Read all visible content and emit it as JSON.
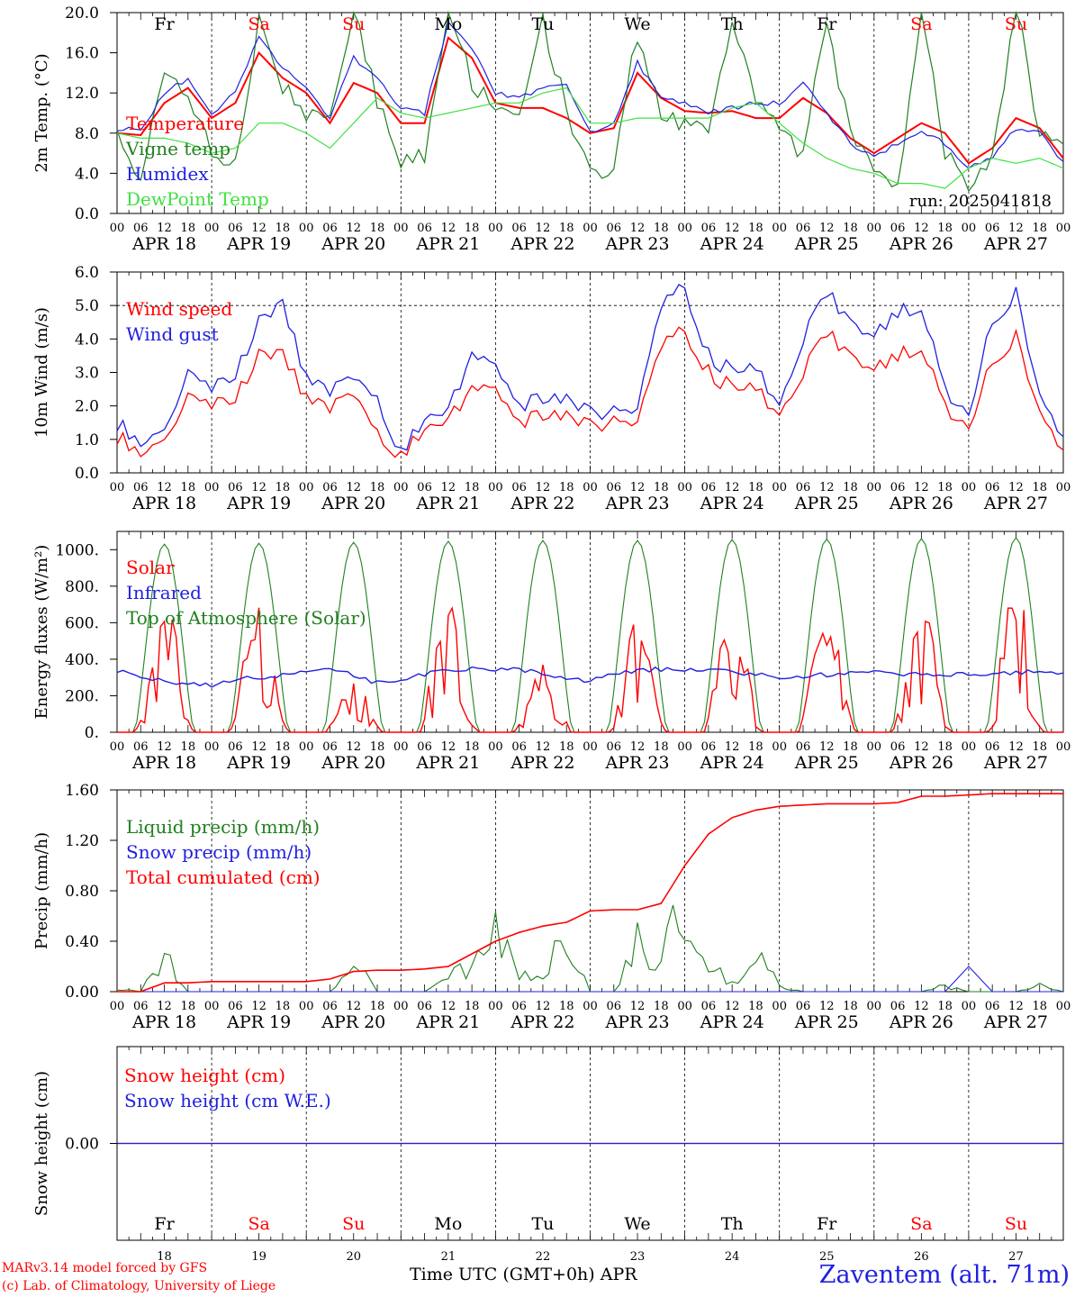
{
  "chart_data": [
    {
      "type": "line",
      "ylabel": "2m Temp. (°C)",
      "ylim": [
        0,
        20
      ],
      "yticks": [
        "0.0",
        "4.0",
        "8.0",
        "12.0",
        "16.0",
        "20.0"
      ],
      "annotation": "run: 2025041818",
      "day_labels": [
        "Fr",
        "Sa",
        "Su",
        "Mo",
        "Tu",
        "We",
        "Th",
        "Fr",
        "Sa",
        "Su"
      ],
      "x_hours": [
        0,
        6,
        12,
        18,
        24,
        30,
        36,
        42,
        48,
        54,
        60,
        66,
        72,
        78,
        84,
        90,
        96,
        102,
        108,
        114,
        120,
        126,
        132,
        138,
        144,
        150,
        156,
        162,
        168,
        174,
        180,
        186,
        192,
        198,
        204,
        210,
        216,
        222,
        228,
        234,
        240
      ],
      "series": [
        {
          "name": "Temperature",
          "color": "#ff0000",
          "values": [
            8.0,
            7.8,
            11.0,
            12.5,
            9.5,
            11.0,
            16.0,
            13.5,
            12.0,
            9.0,
            13.0,
            12.0,
            9.0,
            9.0,
            17.5,
            15.5,
            11.0,
            10.5,
            10.5,
            9.5,
            8.0,
            8.5,
            14.0,
            11.5,
            10.2,
            10.0,
            10.2,
            9.5,
            9.5,
            11.5,
            10.0,
            7.5,
            6.0,
            7.5,
            9.0,
            8.0,
            5.0,
            6.5,
            9.5,
            8.5,
            5.5
          ]
        },
        {
          "name": "Vigne temp",
          "color": "#208020",
          "values": [
            7.5,
            4.0,
            13.0,
            12.0,
            6.0,
            5.0,
            19.0,
            12.5,
            10.0,
            9.0,
            21.0,
            11.0,
            5.5,
            6.0,
            21.0,
            13.0,
            11.0,
            10.5,
            19.0,
            10.5,
            4.0,
            5.0,
            18.0,
            10.0,
            9.0,
            9.0,
            19.0,
            11.0,
            8.0,
            6.0,
            19.0,
            8.0,
            5.0,
            3.0,
            20.0,
            6.0,
            3.0,
            5.5,
            21.0,
            7.5,
            6.5
          ]
        },
        {
          "name": "Humidex",
          "color": "#2020e0",
          "values": [
            8.5,
            8.3,
            12.0,
            13.5,
            10.0,
            12.0,
            17.5,
            14.5,
            12.5,
            9.5,
            15.5,
            13.5,
            10.5,
            10.0,
            19.0,
            16.5,
            12.0,
            11.5,
            12.5,
            13.0,
            8.0,
            9.0,
            15.0,
            11.5,
            11.0,
            10.0,
            10.5,
            11.0,
            11.0,
            13.0,
            10.0,
            7.0,
            5.5,
            7.0,
            8.0,
            7.0,
            4.5,
            5.5,
            8.5,
            8.0,
            5.0
          ]
        },
        {
          "name": "DewPoint Temp",
          "color": "#40e040",
          "values": [
            8.0,
            7.5,
            7.5,
            7.0,
            6.0,
            6.5,
            9.0,
            9.0,
            8.0,
            6.5,
            9.0,
            11.5,
            10.0,
            9.5,
            10.0,
            10.5,
            11.0,
            11.0,
            12.0,
            12.5,
            9.0,
            9.0,
            9.5,
            9.5,
            9.5,
            9.5,
            10.5,
            11.0,
            9.0,
            7.0,
            5.5,
            4.5,
            4.0,
            3.0,
            3.0,
            2.5,
            4.5,
            5.5,
            5.0,
            5.5,
            4.5
          ]
        }
      ]
    },
    {
      "type": "line",
      "ylabel": "10m Wind (m/s)",
      "ylim": [
        0,
        6
      ],
      "yticks": [
        "0.0",
        "1.0",
        "2.0",
        "3.0",
        "4.0",
        "5.0",
        "6.0"
      ],
      "reference_line": 5.0,
      "x_hours": [
        0,
        6,
        12,
        18,
        24,
        30,
        36,
        42,
        48,
        54,
        60,
        66,
        72,
        78,
        84,
        90,
        96,
        102,
        108,
        114,
        120,
        126,
        132,
        138,
        144,
        150,
        156,
        162,
        168,
        174,
        180,
        186,
        192,
        198,
        204,
        210,
        216,
        222,
        228,
        234,
        240
      ],
      "series": [
        {
          "name": "Wind speed",
          "color": "#ff0000",
          "values": [
            1.1,
            0.6,
            0.8,
            2.2,
            2.0,
            2.3,
            3.5,
            3.5,
            2.3,
            2.0,
            2.5,
            1.2,
            0.4,
            1.3,
            1.6,
            2.5,
            2.7,
            1.5,
            1.8,
            1.8,
            1.4,
            1.5,
            1.6,
            3.8,
            4.2,
            3.0,
            2.5,
            2.7,
            1.5,
            3.0,
            4.2,
            3.5,
            3.0,
            3.5,
            3.8,
            2.0,
            1.4,
            3.3,
            4.0,
            2.0,
            0.5
          ]
        },
        {
          "name": "Wind gust",
          "color": "#2020e0",
          "values": [
            1.5,
            0.9,
            1.1,
            2.9,
            2.5,
            3.0,
            4.5,
            5.0,
            2.9,
            2.5,
            3.0,
            2.2,
            0.5,
            1.6,
            1.9,
            3.5,
            3.4,
            2.0,
            2.3,
            2.3,
            1.8,
            1.8,
            2.0,
            5.0,
            5.5,
            3.5,
            3.0,
            3.3,
            1.8,
            4.0,
            5.4,
            4.5,
            4.0,
            4.8,
            5.0,
            2.5,
            1.8,
            4.5,
            5.3,
            2.5,
            0.9
          ]
        }
      ]
    },
    {
      "type": "line",
      "ylabel": "Energy fluxes (W/m²)",
      "ylim": [
        0,
        1100
      ],
      "yticks": [
        "0.",
        "200.",
        "400.",
        "600.",
        "800.",
        "1000."
      ],
      "series": [
        {
          "name": "Solar",
          "color": "#ff0000",
          "peaks": [
            740,
            750,
            290,
            780,
            410,
            620,
            690,
            700,
            760,
            800
          ]
        },
        {
          "name": "Infrared",
          "color": "#2020e0",
          "values": [
            340,
            300,
            265,
            260,
            300,
            300,
            340,
            345,
            280,
            280,
            330,
            345,
            345,
            340,
            300,
            280,
            330,
            345,
            345,
            340,
            320,
            300,
            310,
            320,
            330,
            320,
            315,
            320,
            320,
            330,
            320
          ]
        },
        {
          "name": "Top of Atmosphere (Solar)",
          "color": "#208020",
          "peaks": [
            1030,
            1035,
            1040,
            1045,
            1050,
            1050,
            1055,
            1058,
            1060,
            1065
          ]
        }
      ]
    },
    {
      "type": "line",
      "ylabel": "Precip (mm/h)",
      "ylim": [
        0,
        1.6
      ],
      "yticks": [
        "0.00",
        "0.40",
        "0.80",
        "1.20",
        "1.60"
      ],
      "series": [
        {
          "name": "Liquid precip (mm/h)",
          "color": "#208020",
          "values": [
            0.03,
            0.0,
            0.32,
            0.0,
            0.0,
            0.0,
            0.0,
            0.0,
            0.0,
            0.0,
            0.27,
            0.0,
            0.0,
            0.0,
            0.1,
            0.25,
            0.6,
            0.15,
            0.1,
            0.55,
            0.0,
            0.0,
            0.4,
            0.3,
            0.75,
            0.2,
            0.1,
            0.3,
            0.05,
            0.0,
            0.0,
            0.0,
            0.0,
            0.0,
            0.0,
            0.05,
            0.0,
            0.0,
            0.0,
            0.05,
            0.0
          ]
        },
        {
          "name": "Snow precip (mm/h)",
          "color": "#2020e0",
          "values": [
            0.0,
            0.0,
            0.0,
            0.0,
            0.0,
            0.0,
            0.0,
            0.0,
            0.0,
            0.0,
            0.0,
            0.0,
            0.0,
            0.0,
            0.0,
            0.0,
            0.0,
            0.0,
            0.0,
            0.0,
            0.0,
            0.0,
            0.0,
            0.0,
            0.0,
            0.0,
            0.0,
            0.0,
            0.0,
            0.0,
            0.0,
            0.0,
            0.0,
            0.0,
            0.0,
            0.0,
            0.2,
            0.0,
            0.0,
            0.0,
            0.0
          ]
        },
        {
          "name": "Total cumulated (cm)",
          "color": "#ff0000",
          "values": [
            0.0,
            0.0,
            0.07,
            0.07,
            0.08,
            0.08,
            0.08,
            0.08,
            0.08,
            0.1,
            0.16,
            0.17,
            0.17,
            0.18,
            0.2,
            0.3,
            0.4,
            0.47,
            0.52,
            0.55,
            0.64,
            0.65,
            0.65,
            0.7,
            1.0,
            1.25,
            1.38,
            1.44,
            1.47,
            1.48,
            1.49,
            1.49,
            1.49,
            1.5,
            1.55,
            1.55,
            1.56,
            1.57,
            1.57,
            1.57,
            1.57
          ]
        }
      ]
    },
    {
      "type": "line",
      "ylabel": "Snow height (cm)",
      "yticks": [
        "0.00"
      ],
      "series": [
        {
          "name": "Snow height (cm)",
          "color": "#ff0000",
          "values": [
            0,
            0,
            0,
            0,
            0,
            0,
            0,
            0,
            0,
            0,
            0
          ]
        },
        {
          "name": "Snow height (cm W.E.)",
          "color": "#2020e0",
          "values": [
            0,
            0,
            0,
            0,
            0,
            0,
            0,
            0,
            0,
            0,
            0
          ]
        }
      ]
    }
  ],
  "x_axis": {
    "hour_ticks": [
      "00",
      "06",
      "12",
      "18"
    ],
    "last_tick": "00",
    "dates": [
      "APR 18",
      "APR 19",
      "APR 20",
      "APR 21",
      "APR 22",
      "APR 23",
      "APR 24",
      "APR 25",
      "APR 26",
      "APR 27"
    ],
    "day_numbers": [
      "18",
      "19",
      "20",
      "21",
      "22",
      "23",
      "24",
      "25",
      "26",
      "27"
    ],
    "weekdays": [
      "Fr",
      "Sa",
      "Su",
      "Mo",
      "Tu",
      "We",
      "Th",
      "Fr",
      "Sa",
      "Su"
    ],
    "weekday_colors": [
      "#000000",
      "#ff0000",
      "#ff0000",
      "#000000",
      "#000000",
      "#000000",
      "#000000",
      "#000000",
      "#ff0000",
      "#ff0000"
    ],
    "axis_title": "Time UTC (GMT+0h) APR"
  },
  "footer": {
    "model": "MARv3.14 model forced by GFS",
    "credit": "(c) Lab. of Climatology, University of Liege",
    "station": "Zaventem (alt. 71m)"
  }
}
